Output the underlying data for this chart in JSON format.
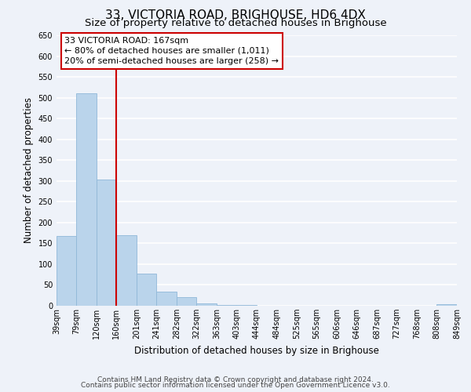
{
  "title": "33, VICTORIA ROAD, BRIGHOUSE, HD6 4DX",
  "subtitle": "Size of property relative to detached houses in Brighouse",
  "xlabel": "Distribution of detached houses by size in Brighouse",
  "ylabel": "Number of detached properties",
  "bin_edges": [
    39,
    79,
    120,
    160,
    201,
    241,
    282,
    322,
    363,
    403,
    444,
    484,
    525,
    565,
    606,
    646,
    687,
    727,
    768,
    808,
    849
  ],
  "bar_heights": [
    167,
    510,
    303,
    170,
    78,
    33,
    20,
    5,
    2,
    1,
    0,
    0,
    0,
    0,
    0,
    0,
    0,
    0,
    0,
    3
  ],
  "bar_color": "#bad4eb",
  "bar_edgecolor": "#90b8d8",
  "ylim": [
    0,
    650
  ],
  "yticks": [
    0,
    50,
    100,
    150,
    200,
    250,
    300,
    350,
    400,
    450,
    500,
    550,
    600,
    650
  ],
  "xtick_labels": [
    "39sqm",
    "79sqm",
    "120sqm",
    "160sqm",
    "201sqm",
    "241sqm",
    "282sqm",
    "322sqm",
    "363sqm",
    "403sqm",
    "444sqm",
    "484sqm",
    "525sqm",
    "565sqm",
    "606sqm",
    "646sqm",
    "687sqm",
    "727sqm",
    "768sqm",
    "808sqm",
    "849sqm"
  ],
  "vline_x": 160,
  "vline_color": "#cc0000",
  "annotation_line1": "33 VICTORIA ROAD: 167sqm",
  "annotation_line2": "← 80% of detached houses are smaller (1,011)",
  "annotation_line3": "20% of semi-detached houses are larger (258) →",
  "footer_line1": "Contains HM Land Registry data © Crown copyright and database right 2024.",
  "footer_line2": "Contains public sector information licensed under the Open Government Licence v3.0.",
  "background_color": "#eef2f9",
  "grid_color": "#ffffff",
  "title_fontsize": 11,
  "subtitle_fontsize": 9.5,
  "axis_label_fontsize": 8.5,
  "tick_fontsize": 7,
  "annotation_fontsize": 8,
  "footer_fontsize": 6.5
}
